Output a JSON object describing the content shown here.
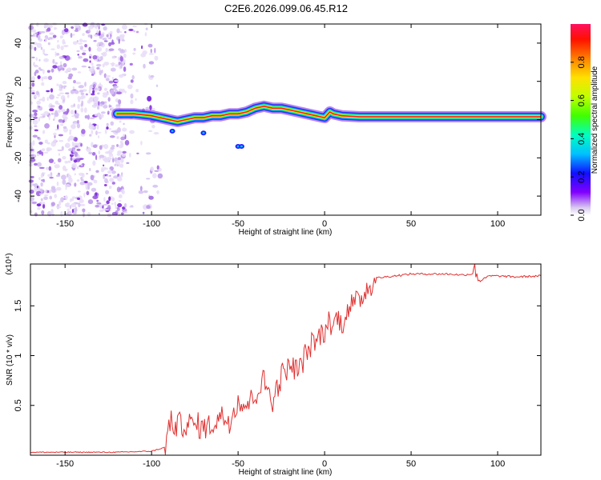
{
  "title": "C2E6.2026.099.06.45.R12",
  "chart_data": [
    {
      "type": "heatmap",
      "name": "spectrogram",
      "xlabel": "Height of straight line (km)",
      "ylabel": "Frequency (Hz)",
      "xlim": [
        -170,
        125
      ],
      "ylim": [
        -50,
        50
      ],
      "xticks": [
        -150,
        -100,
        -50,
        0,
        50,
        100
      ],
      "yticks": [
        -40,
        -20,
        0,
        20,
        40
      ],
      "ridge": {
        "description_values_only": "peak frequency (Hz) of the strong signal vs height (km)",
        "x": [
          -120,
          -110,
          -100,
          -95,
          -90,
          -85,
          -80,
          -75,
          -70,
          -65,
          -60,
          -55,
          -50,
          -45,
          -40,
          -35,
          -30,
          -25,
          -20,
          -15,
          -10,
          -5,
          0,
          3,
          5,
          10,
          20,
          40,
          60,
          80,
          100,
          125
        ],
        "y": [
          3,
          3,
          2,
          1,
          0,
          -1,
          0,
          1,
          1,
          2,
          2,
          3,
          3,
          4,
          6,
          7,
          6,
          6,
          5,
          4,
          3,
          2,
          1,
          4,
          3,
          2,
          1.5,
          1.5,
          1.5,
          1.5,
          1.5,
          1.5
        ]
      },
      "colorbar": {
        "label": "Normalized spectral amplitude",
        "range": [
          0,
          1
        ],
        "ticks": [
          0.0,
          0.2,
          0.4,
          0.6,
          0.8
        ]
      }
    },
    {
      "type": "line",
      "name": "snr",
      "xlabel": "Height of straight line (km)",
      "ylabel": "SNR (10 * v/v)",
      "scale_label": "(x10⁴)",
      "xlim": [
        -170,
        125
      ],
      "ylim": [
        0,
        1.92
      ],
      "xticks": [
        -150,
        -100,
        -50,
        0,
        50,
        100
      ],
      "yticks": [
        0.5,
        1.0,
        1.5
      ],
      "color": "#e03030",
      "series": [
        {
          "name": "SNR",
          "x": [
            -170,
            -150,
            -120,
            -100,
            -92,
            -90,
            -88,
            -85,
            -80,
            -75,
            -70,
            -65,
            -60,
            -55,
            -50,
            -45,
            -40,
            -35,
            -30,
            -25,
            -20,
            -15,
            -10,
            -5,
            0,
            3,
            5,
            8,
            10,
            12,
            15,
            20,
            25,
            30,
            40,
            50,
            60,
            70,
            80,
            85,
            88,
            90,
            95,
            100,
            110,
            125
          ],
          "y": [
            0.03,
            0.03,
            0.03,
            0.04,
            0.08,
            0.3,
            0.32,
            0.3,
            0.32,
            0.3,
            0.28,
            0.3,
            0.4,
            0.35,
            0.55,
            0.5,
            0.62,
            0.75,
            0.55,
            0.8,
            0.9,
            0.85,
            1.05,
            1.15,
            1.25,
            1.35,
            1.3,
            1.4,
            1.28,
            1.45,
            1.5,
            1.55,
            1.7,
            1.78,
            1.8,
            1.82,
            1.82,
            1.82,
            1.81,
            1.82,
            1.85,
            1.75,
            1.8,
            1.8,
            1.79,
            1.8
          ]
        }
      ]
    }
  ]
}
